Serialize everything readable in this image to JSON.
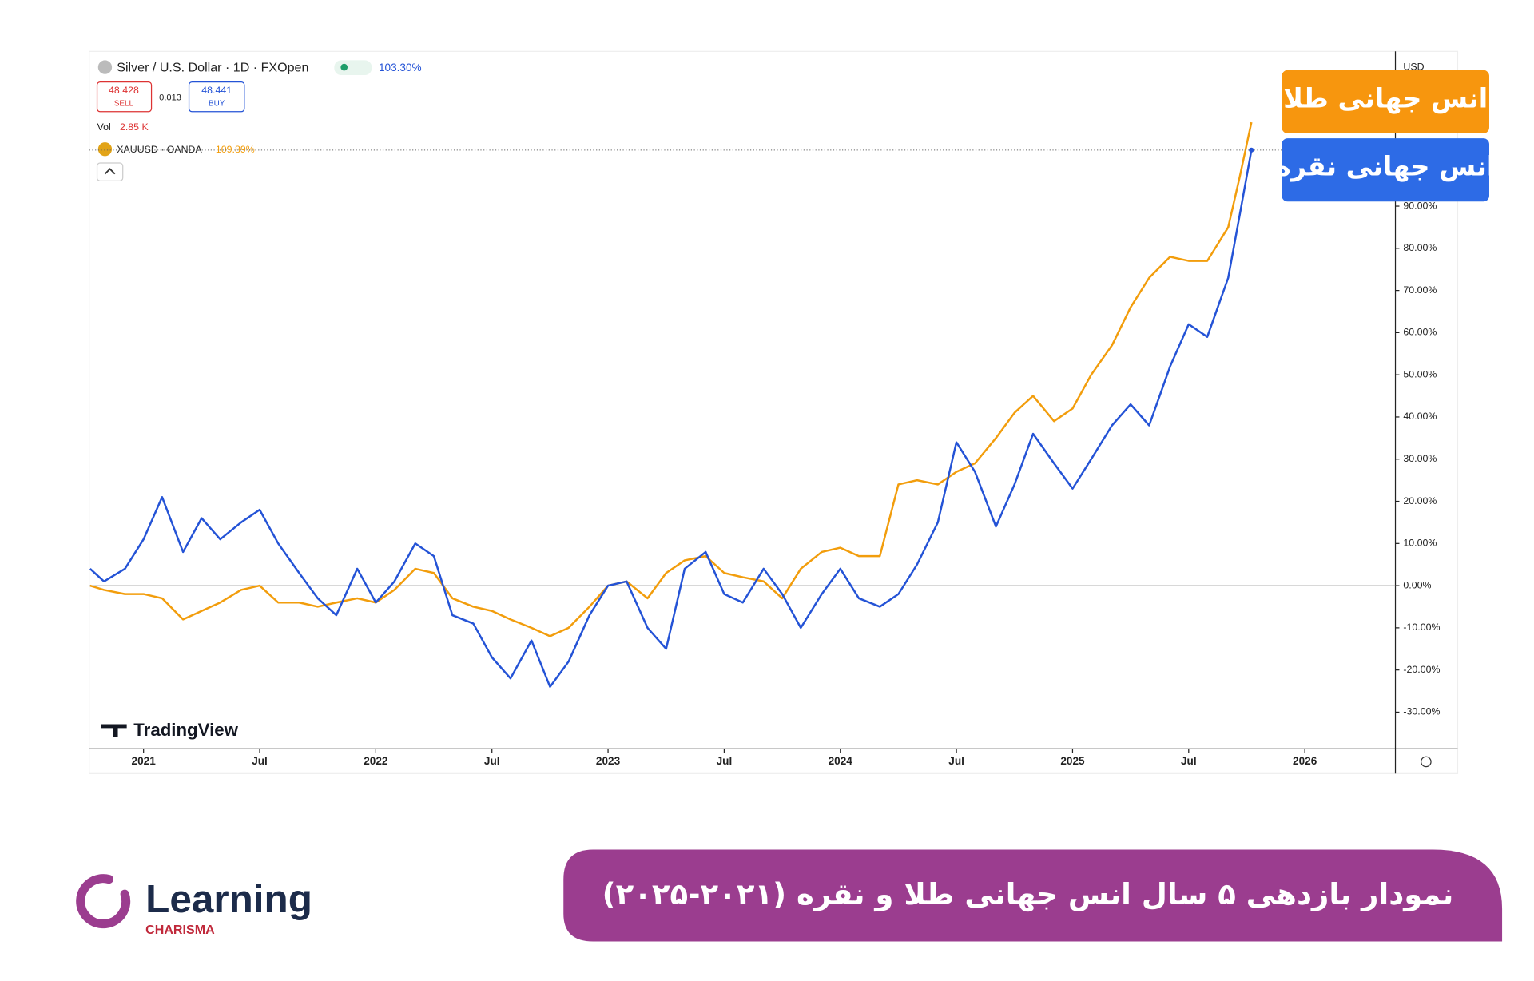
{
  "header": {
    "symbol": "Silver / U.S. Dollar · 1D · FXOpen",
    "change": "103.30%",
    "sell_price": "48.428",
    "sell": "SELL",
    "spread": "0.013",
    "buy_price": "48.441",
    "buy": "BUY",
    "vol": "Vol",
    "vol_value": "2.85 K",
    "compare": "XAUUSD · OANDA",
    "compare_change": "109.89%",
    "currency": "USD",
    "brand": "TradingView"
  },
  "chart_data": {
    "type": "line",
    "title": "نمودار بازدهی ۵ سال انس جهانی طلا و نقره (۲۰۲۱-۲۰۲۵)",
    "x": [
      2020.77,
      2020.83,
      2020.92,
      2021.0,
      2021.08,
      2021.17,
      2021.25,
      2021.33,
      2021.42,
      2021.5,
      2021.58,
      2021.67,
      2021.75,
      2021.83,
      2021.92,
      2022.0,
      2022.08,
      2022.17,
      2022.25,
      2022.33,
      2022.42,
      2022.5,
      2022.58,
      2022.67,
      2022.75,
      2022.83,
      2022.92,
      2023.0,
      2023.08,
      2023.17,
      2023.25,
      2023.33,
      2023.42,
      2023.5,
      2023.58,
      2023.67,
      2023.75,
      2023.83,
      2023.92,
      2024.0,
      2024.08,
      2024.17,
      2024.25,
      2024.33,
      2024.42,
      2024.5,
      2024.58,
      2024.67,
      2024.75,
      2024.83,
      2024.92,
      2025.0,
      2025.08,
      2025.17,
      2025.25,
      2025.33,
      2025.42,
      2025.5,
      2025.58,
      2025.67,
      2025.72,
      2025.77
    ],
    "series": [
      {
        "name": "انس جهانی طلا",
        "color": "#f29d0c",
        "values": [
          0,
          -1,
          -2,
          -2,
          -3,
          -8,
          -6,
          -4,
          -1,
          0,
          -4,
          -4,
          -5,
          -4,
          -3,
          -4,
          -1,
          4,
          3,
          -3,
          -5,
          -6,
          -8,
          -10,
          -12,
          -10,
          -5,
          0,
          1,
          -3,
          3,
          6,
          7,
          3,
          2,
          1,
          -3,
          4,
          8,
          9,
          7,
          7,
          24,
          25,
          24,
          27,
          29,
          35,
          41,
          45,
          39,
          42,
          50,
          57,
          66,
          73,
          78,
          77,
          77,
          85,
          97,
          109.89
        ]
      },
      {
        "name": "انس جهانی نقره",
        "color": "#2453d6",
        "values": [
          4,
          1,
          4,
          11,
          21,
          8,
          16,
          11,
          15,
          18,
          10,
          3,
          -3,
          -7,
          4,
          -4,
          1,
          10,
          7,
          -7,
          -9,
          -17,
          -22,
          -13,
          -24,
          -18,
          -7,
          0,
          1,
          -10,
          -15,
          4,
          8,
          -2,
          -4,
          4,
          -2,
          -10,
          -2,
          4,
          -3,
          -5,
          -2,
          5,
          15,
          34,
          27,
          14,
          24,
          36,
          29,
          23,
          30,
          38,
          43,
          38,
          52,
          62,
          59,
          73,
          88,
          103.3
        ]
      }
    ],
    "xlim": [
      2020.766,
      2026.39
    ],
    "xticks": [
      {
        "value": 2021,
        "label": "2021"
      },
      {
        "value": 2021.5,
        "label": "Jul"
      },
      {
        "value": 2022,
        "label": "2022"
      },
      {
        "value": 2022.5,
        "label": "Jul"
      },
      {
        "value": 2023,
        "label": "2023"
      },
      {
        "value": 2023.5,
        "label": "Jul"
      },
      {
        "value": 2024,
        "label": "2024"
      },
      {
        "value": 2024.5,
        "label": "Jul"
      },
      {
        "value": 2025,
        "label": "2025"
      },
      {
        "value": 2025.5,
        "label": "Jul"
      },
      {
        "value": 2026,
        "label": "2026"
      }
    ],
    "ylim": [
      -38,
      126
    ],
    "yticks": [
      {
        "value": -30,
        "label": "-30.00%"
      },
      {
        "value": -20,
        "label": "-20.00%"
      },
      {
        "value": -10,
        "label": "-10.00%"
      },
      {
        "value": 0,
        "label": "0.00%"
      },
      {
        "value": 10,
        "label": "10.00%"
      },
      {
        "value": 20,
        "label": "20.00%"
      },
      {
        "value": 30,
        "label": "30.00%"
      },
      {
        "value": 40,
        "label": "40.00%"
      },
      {
        "value": 50,
        "label": "50.00%"
      },
      {
        "value": 60,
        "label": "60.00%"
      },
      {
        "value": 70,
        "label": "70.00%"
      },
      {
        "value": 80,
        "label": "80.00%"
      },
      {
        "value": 90,
        "label": "90.00%"
      }
    ]
  },
  "logo": {
    "name": "Learning",
    "sub": "CHARISMA"
  }
}
